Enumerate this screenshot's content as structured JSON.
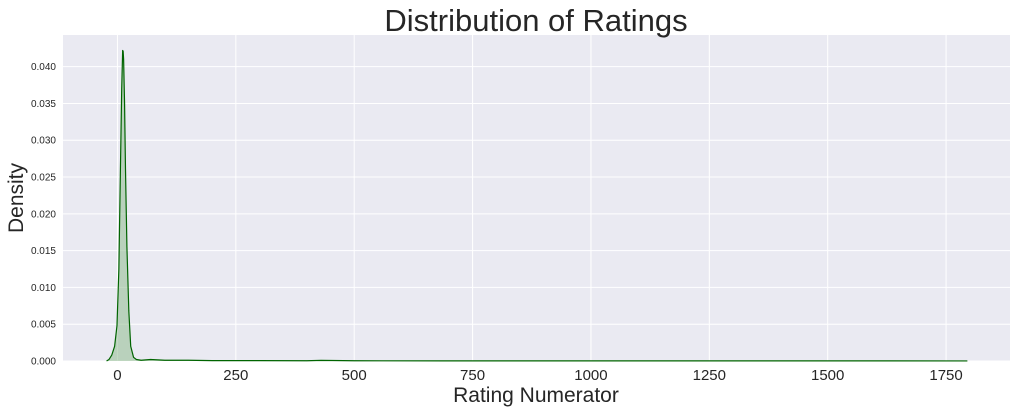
{
  "chart_data": {
    "type": "area",
    "title": "Distribution of Ratings",
    "xlabel": "Rating Numerator",
    "ylabel": "Density",
    "xlim": [
      -115,
      1885
    ],
    "ylim": [
      0,
      0.0443
    ],
    "xticks": [
      0,
      250,
      500,
      750,
      1000,
      1250,
      1500,
      1750
    ],
    "xtick_labels": [
      "0",
      "250",
      "500",
      "750",
      "1000",
      "1250",
      "1500",
      "1750"
    ],
    "yticks": [
      0.0,
      0.005,
      0.01,
      0.015,
      0.02,
      0.025,
      0.03,
      0.035,
      0.04
    ],
    "ytick_labels": [
      "0.000",
      "0.005",
      "0.010",
      "0.015",
      "0.020",
      "0.025",
      "0.030",
      "0.035",
      "0.040"
    ],
    "grid": true,
    "series": [
      {
        "x": [
          -23,
          -18,
          -12,
          -6,
          -1,
          3,
          6,
          9,
          11,
          12,
          13,
          15,
          17,
          20,
          24,
          28,
          34,
          40,
          50,
          70,
          100,
          150,
          200,
          300,
          400,
          430,
          500,
          700,
          1000,
          1300,
          1600,
          1795
        ],
        "y": [
          0.0,
          0.0002,
          0.0008,
          0.002,
          0.0048,
          0.0125,
          0.025,
          0.037,
          0.0422,
          0.0421,
          0.041,
          0.035,
          0.026,
          0.0155,
          0.0068,
          0.002,
          0.0005,
          0.0002,
          0.0001,
          0.0002,
          0.0001,
          0.0001,
          5e-05,
          5e-05,
          3e-05,
          8e-05,
          3e-05,
          2e-05,
          2e-05,
          2e-05,
          2e-05,
          1e-05
        ]
      }
    ],
    "colors": {
      "line": "#006400",
      "fill": "#8fbc8f",
      "plot_background": "#eaeaf2",
      "grid": "#ffffff"
    }
  }
}
